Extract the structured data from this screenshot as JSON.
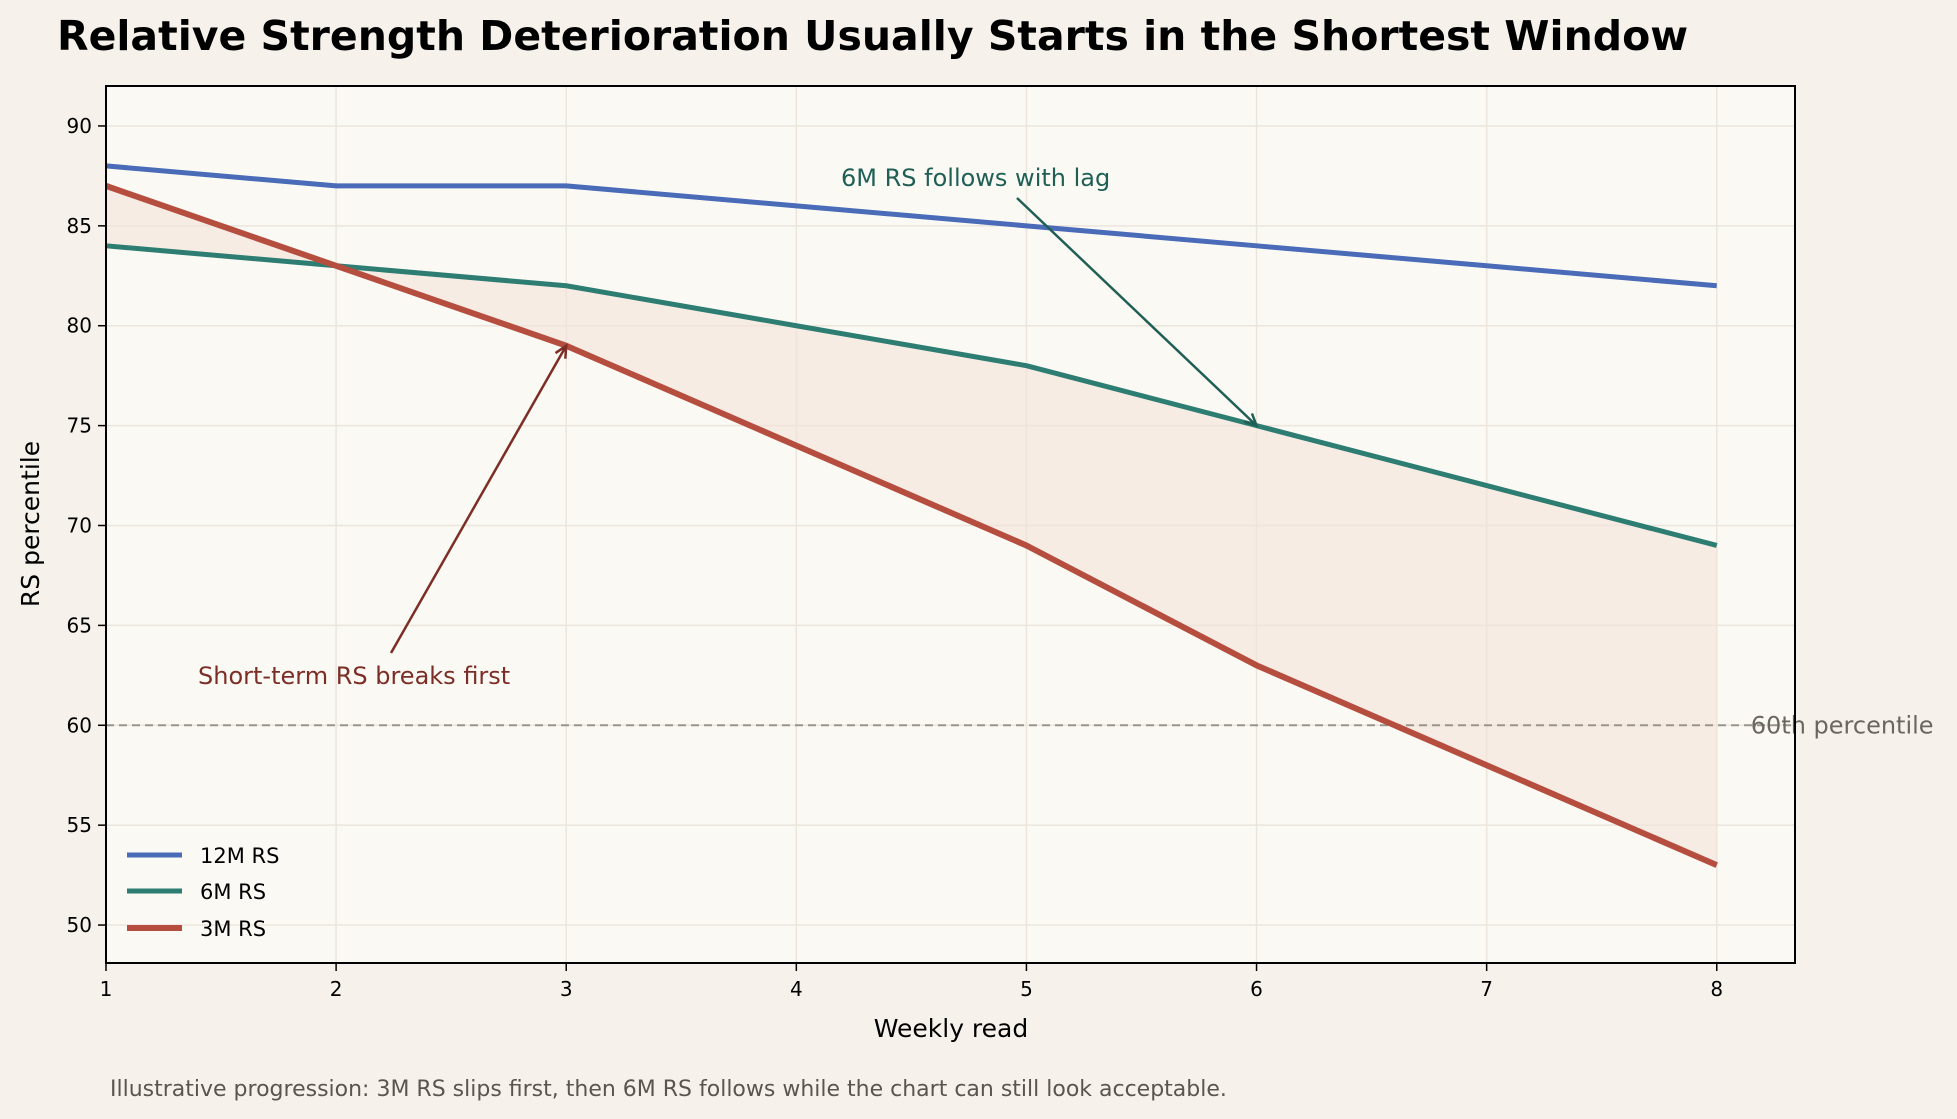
{
  "chart_data": {
    "type": "line",
    "title": "Relative Strength Deterioration Usually Starts in the Shortest Window",
    "xlabel": "Weekly read",
    "ylabel": "RS percentile",
    "x": [
      1,
      2,
      3,
      4,
      5,
      6,
      7,
      8
    ],
    "xticks": [
      "1",
      "2",
      "3",
      "4",
      "5",
      "6",
      "7",
      "8"
    ],
    "yticks": [
      "50",
      "55",
      "60",
      "65",
      "70",
      "75",
      "80",
      "85",
      "90"
    ],
    "xlim": [
      1,
      8.34
    ],
    "ylim": [
      48.1,
      92
    ],
    "grid": true,
    "legend_placement": "lower-left",
    "series": [
      {
        "name": "12M RS",
        "values": [
          88,
          87,
          87,
          86,
          85,
          84,
          83,
          82
        ],
        "color": "#4a6bb8"
      },
      {
        "name": "6M RS",
        "values": [
          84,
          83,
          82,
          80,
          78,
          75,
          72,
          69
        ],
        "color": "#2e7d72"
      },
      {
        "name": "3M RS",
        "values": [
          87,
          83,
          79,
          74,
          69,
          63,
          58,
          53
        ],
        "color": "#b54e3f"
      }
    ],
    "fill_between": {
      "series": [
        "6M RS",
        "3M RS"
      ],
      "color": "#f3e3d8"
    },
    "reference_line": {
      "y": 60,
      "label": "60th percentile",
      "color": "#9a948c"
    },
    "annotations": [
      {
        "text": "6M RS follows with lag",
        "x": 6,
        "y": 75,
        "color": "#1f5f55"
      },
      {
        "text": "Short-term RS breaks first",
        "x": 3,
        "y": 79,
        "color": "#7c2e26"
      }
    ],
    "footnote": "Illustrative progression: 3M RS slips first, then 6M RS follows while the chart can still look acceptable."
  }
}
